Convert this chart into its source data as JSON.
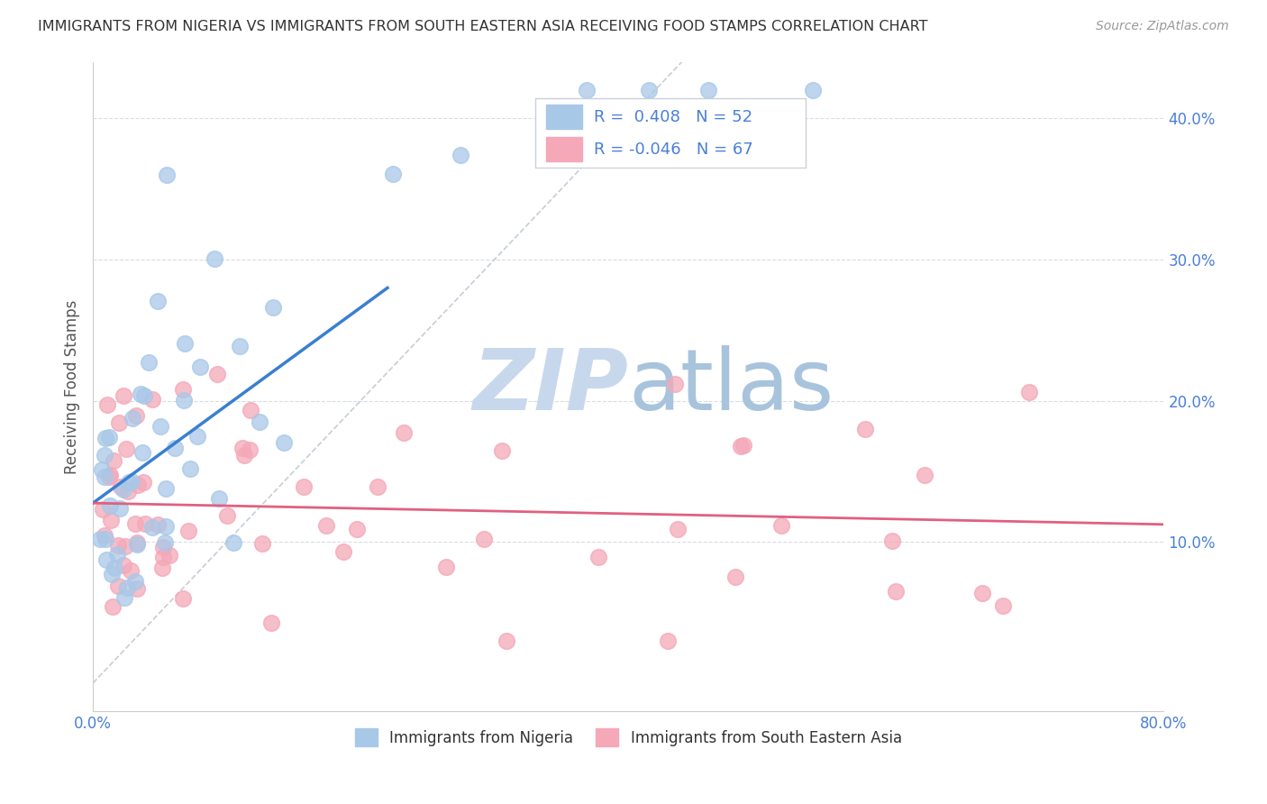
{
  "title": "IMMIGRANTS FROM NIGERIA VS IMMIGRANTS FROM SOUTH EASTERN ASIA RECEIVING FOOD STAMPS CORRELATION CHART",
  "source": "Source: ZipAtlas.com",
  "ylabel": "Receiving Food Stamps",
  "xlim": [
    0.0,
    0.8
  ],
  "ylim": [
    -0.02,
    0.44
  ],
  "xticks": [
    0.0,
    0.1,
    0.2,
    0.3,
    0.4,
    0.5,
    0.6,
    0.7,
    0.8
  ],
  "xticklabels": [
    "0.0%",
    "",
    "",
    "",
    "",
    "",
    "",
    "",
    "80.0%"
  ],
  "yticks": [
    0.0,
    0.1,
    0.2,
    0.3,
    0.4
  ],
  "yticklabels_right": [
    "",
    "10.0%",
    "20.0%",
    "30.0%",
    "40.0%"
  ],
  "legend_R1": "0.408",
  "legend_N1": "52",
  "legend_R2": "-0.046",
  "legend_N2": "67",
  "color_nigeria": "#a8c8e8",
  "color_sea": "#f4a8b8",
  "trendline_nigeria": "#3a7fd0",
  "trendline_sea": "#e06080",
  "refline_color": "#c0c8d0",
  "grid_color": "#d8dde2",
  "title_color": "#333333",
  "axis_label_color": "#4a7fd8",
  "watermark_color_zip": "#c0cce0",
  "watermark_color_atlas": "#9ab8d8",
  "legend1_label": "Immigrants from Nigeria",
  "legend2_label": "Immigrants from South Eastern Asia",
  "nigeria_seed": 42,
  "sea_seed": 77,
  "background": "#ffffff"
}
